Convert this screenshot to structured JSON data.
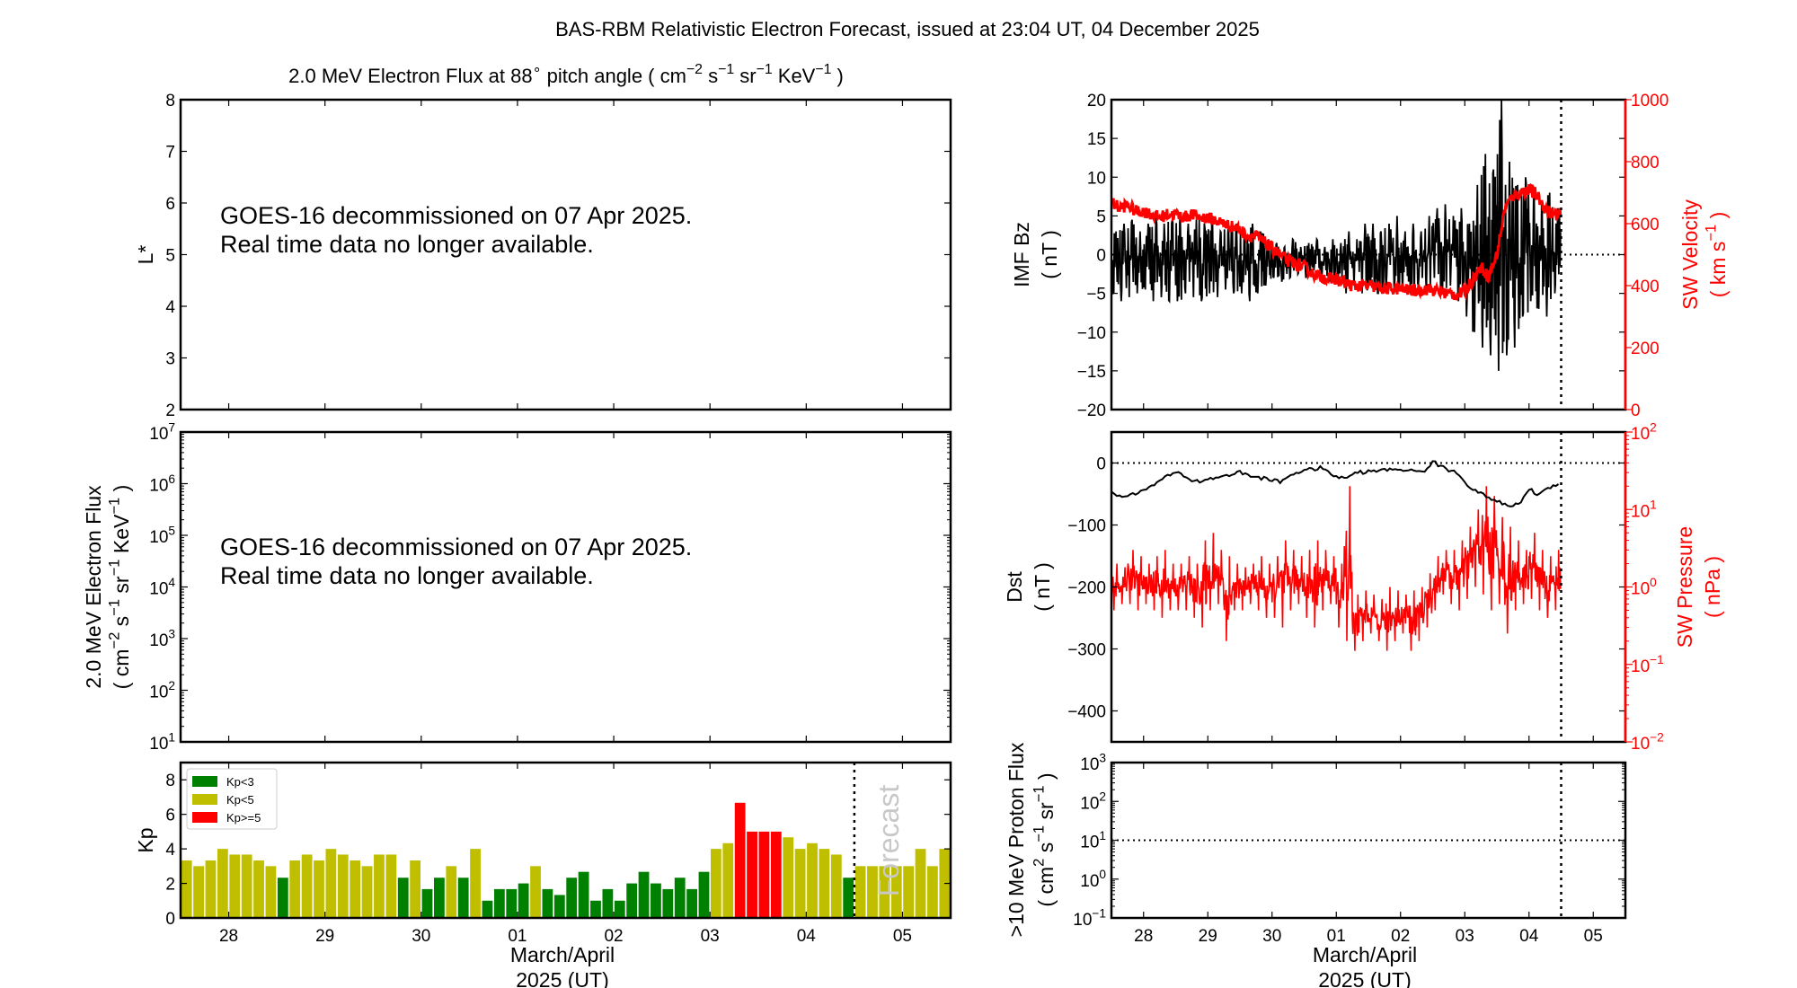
{
  "figure_title": "BAS-RBM Relativistic Electron Forecast, issued at 23:04 UT, 04 December 2025",
  "time_axis": {
    "xlabel": [
      "March/April",
      "2025 (UT)"
    ],
    "day_ticks": [
      "28",
      "29",
      "30",
      "01",
      "02",
      "03",
      "04",
      "05"
    ],
    "xlim": [
      "27 12:00",
      "05 12:00"
    ],
    "now_line": "04 12:00",
    "times": [
      "27 12:00",
      "27 15:00",
      "27 18:00",
      "27 21:00",
      "28 00:00",
      "28 03:00",
      "28 06:00",
      "28 09:00",
      "28 12:00",
      "28 15:00",
      "28 18:00",
      "28 21:00",
      "29 00:00",
      "29 03:00",
      "29 06:00",
      "29 09:00",
      "29 12:00",
      "29 15:00",
      "29 18:00",
      "29 21:00",
      "30 00:00",
      "30 03:00",
      "30 06:00",
      "30 09:00",
      "30 12:00",
      "30 15:00",
      "30 18:00",
      "30 21:00",
      "01 00:00",
      "01 03:00",
      "01 06:00",
      "01 09:00",
      "01 12:00",
      "01 15:00",
      "01 18:00",
      "01 21:00",
      "02 00:00",
      "02 03:00",
      "02 06:00",
      "02 09:00",
      "02 12:00",
      "02 15:00",
      "02 18:00",
      "02 21:00",
      "03 00:00",
      "03 03:00",
      "03 06:00",
      "03 09:00",
      "03 12:00",
      "03 15:00",
      "03 18:00",
      "03 21:00",
      "04 00:00",
      "04 03:00",
      "04 06:00",
      "04 09:00",
      "04 12:00",
      "04 15:00",
      "04 18:00",
      "04 21:00",
      "05 00:00",
      "05 03:00",
      "05 06:00",
      "05 09:00"
    ]
  },
  "chart_data": [
    {
      "id": "lstar",
      "type": "heatmap",
      "title": "2.0 MeV Electron Flux at 88^{∘}  pitch angle ( cm^{−2} s^{−1} sr^{−1} KeV^{−1} )",
      "ylabel": [
        "L*"
      ],
      "ylim": [
        2,
        8
      ],
      "yticks": [
        2,
        3,
        4,
        5,
        6,
        7,
        8
      ],
      "message": [
        "GOES-16 decommissioned on 07 Apr 2025.",
        "Real time data no longer available."
      ]
    },
    {
      "id": "eflux",
      "type": "line",
      "ylabel": [
        "2.0 MeV Electron Flux",
        "( cm^{−2} s^{−1} sr^{−1} KeV^{−1} )"
      ],
      "yscale": "log",
      "ylim_exp": [
        1,
        7
      ],
      "message": [
        "GOES-16 decommissioned on 07 Apr 2025.",
        "Real time data no longer available."
      ]
    },
    {
      "id": "kp",
      "type": "bar",
      "ylabel": [
        "Kp"
      ],
      "ylim": [
        0,
        9
      ],
      "yticks": [
        0,
        2,
        4,
        6,
        8
      ],
      "forecast_label": "Forecast",
      "legend": [
        {
          "label": "Kp<3",
          "color": "#008000"
        },
        {
          "label": "Kp<5",
          "color": "#bfbf00"
        },
        {
          "label": "Kp>=5",
          "color": "#ff0000"
        }
      ],
      "values": [
        3.33,
        3,
        3.33,
        4,
        3.67,
        3.67,
        3.33,
        3,
        2.33,
        3.33,
        3.67,
        3.33,
        4,
        3.67,
        3.33,
        3,
        3.67,
        3.67,
        2.33,
        3.33,
        1.67,
        2.33,
        3,
        2.33,
        4,
        1,
        1.67,
        1.67,
        2,
        3,
        1.67,
        1.33,
        2.33,
        2.67,
        1,
        1.67,
        1,
        2,
        2.67,
        2,
        1.67,
        2.33,
        1.67,
        2.67,
        4,
        4.33,
        6.67,
        5,
        5,
        5,
        4.67,
        4,
        4.33,
        4,
        3.67,
        2.33,
        3,
        3,
        3,
        3,
        3,
        4,
        3,
        4
      ]
    },
    {
      "id": "imf",
      "type": "line",
      "ylabel": [
        "IMF Bz",
        "( nT )"
      ],
      "ylim": [
        -20,
        20
      ],
      "yticks": [
        -20,
        -15,
        -10,
        -5,
        0,
        5,
        10,
        15,
        20
      ],
      "y2label": [
        "SW Velocity",
        "( km s^{−1} )"
      ],
      "y2lim": [
        0,
        1000
      ],
      "y2ticks": [
        0,
        200,
        400,
        600,
        800,
        1000
      ],
      "series": [
        {
          "name": "IMF Bz",
          "axis": "left",
          "color": "#000000",
          "min": [
            -5,
            -6,
            -5.5,
            -5,
            -4.5,
            -6,
            -5.5,
            -6,
            -6,
            -5,
            -5.5,
            -6,
            -5,
            -5.5,
            -4.5,
            -5,
            -5,
            -6,
            -5,
            -4,
            -3,
            -3.5,
            -3,
            -2.5,
            -3,
            -2,
            -3,
            -3.5,
            -3,
            -5,
            -4,
            -5,
            -4,
            -5,
            -4,
            -5,
            -4,
            -5,
            -4,
            -5,
            -3,
            -5,
            -4,
            -6,
            -8,
            -10,
            -12,
            -13,
            -15,
            -13,
            -12,
            -8,
            -6,
            -7,
            -8,
            -5
          ],
          "max": [
            3,
            4,
            4.5,
            3,
            4,
            5,
            4,
            4.5,
            5,
            4,
            4.5,
            4,
            5,
            3,
            4,
            4,
            3,
            4,
            3,
            2,
            1.5,
            1,
            2,
            1,
            1.5,
            2,
            1,
            2,
            1.5,
            3,
            2,
            4,
            4,
            3,
            4,
            5,
            3,
            4,
            3,
            5,
            6,
            6.5,
            5,
            6,
            4,
            9,
            13,
            11,
            20,
            12,
            9,
            10,
            8,
            7,
            8,
            6
          ]
        },
        {
          "name": "SW Velocity",
          "axis": "right",
          "color": "#ff0000",
          "values": [
            670,
            650,
            660,
            640,
            640,
            630,
            620,
            630,
            630,
            620,
            630,
            620,
            620,
            610,
            600,
            590,
            580,
            560,
            560,
            540,
            520,
            500,
            480,
            470,
            460,
            440,
            430,
            420,
            420,
            410,
            400,
            400,
            400,
            395,
            390,
            390,
            390,
            385,
            385,
            390,
            385,
            380,
            375,
            370,
            380,
            420,
            460,
            430,
            500,
            650,
            690,
            700,
            710,
            690,
            650,
            630
          ]
        }
      ]
    },
    {
      "id": "dst",
      "type": "line",
      "ylabel": [
        "Dst",
        "( nT )"
      ],
      "ylim": [
        -450,
        50
      ],
      "yticks": [
        -400,
        -300,
        -200,
        -100,
        0
      ],
      "y2label": [
        "SW Pressure",
        "( nPa )"
      ],
      "y2scale": "log",
      "y2lim_exp": [
        -2,
        2
      ],
      "series": [
        {
          "name": "Dst",
          "axis": "left",
          "color": "#000000",
          "values": [
            -45,
            -55,
            -52,
            -48,
            -45,
            -38,
            -28,
            -22,
            -15,
            -20,
            -28,
            -30,
            -25,
            -25,
            -20,
            -18,
            -15,
            -20,
            -22,
            -25,
            -28,
            -30,
            -22,
            -15,
            -12,
            -10,
            -8,
            -15,
            -22,
            -25,
            -18,
            -15,
            -14,
            -12,
            -12,
            -10,
            -10,
            -12,
            -14,
            -12,
            2,
            -5,
            -12,
            -15,
            -30,
            -42,
            -50,
            -55,
            -62,
            -68,
            -70,
            -62,
            -42,
            -50,
            -45,
            -35
          ]
        },
        {
          "name": "SW Pressure",
          "axis": "right",
          "color": "#ff0000",
          "min": [
            0.5,
            0.6,
            0.6,
            0.5,
            0.6,
            0.5,
            0.4,
            0.5,
            0.5,
            0.5,
            0.4,
            0.3,
            0.5,
            0.6,
            0.2,
            0.5,
            0.5,
            0.6,
            0.5,
            0.4,
            0.4,
            0.3,
            0.5,
            0.6,
            0.4,
            0.3,
            0.5,
            0.6,
            0.3,
            0.2,
            0.15,
            0.2,
            0.25,
            0.2,
            0.15,
            0.2,
            0.25,
            0.15,
            0.2,
            0.3,
            0.5,
            0.8,
            0.6,
            0.5,
            0.7,
            1.0,
            0.8,
            0.5,
            0.6,
            0.25,
            0.5,
            0.6,
            0.7,
            0.5,
            0.4,
            0.5
          ],
          "max": [
            2,
            1.8,
            3,
            2.5,
            2,
            2.5,
            3,
            2,
            2,
            2.5,
            2,
            4,
            5,
            3,
            2.5,
            2,
            1.8,
            2,
            2.5,
            2,
            2.5,
            4,
            3,
            2.5,
            3,
            4,
            3,
            2.5,
            2,
            20,
            0.8,
            0.9,
            0.8,
            0.7,
            1,
            0.9,
            0.8,
            0.9,
            1,
            1.5,
            2.5,
            3,
            3,
            4,
            6,
            10,
            20,
            15,
            8,
            6,
            4,
            3,
            5,
            3,
            2.5,
            3
          ]
        }
      ]
    },
    {
      "id": "proton",
      "type": "line",
      "ylabel": [
        ">10 MeV Proton Flux",
        "( cm^{2} s^{−1} sr^{−1} )"
      ],
      "yscale": "log",
      "ylim_exp": [
        -1,
        3
      ],
      "threshold": 10
    }
  ]
}
